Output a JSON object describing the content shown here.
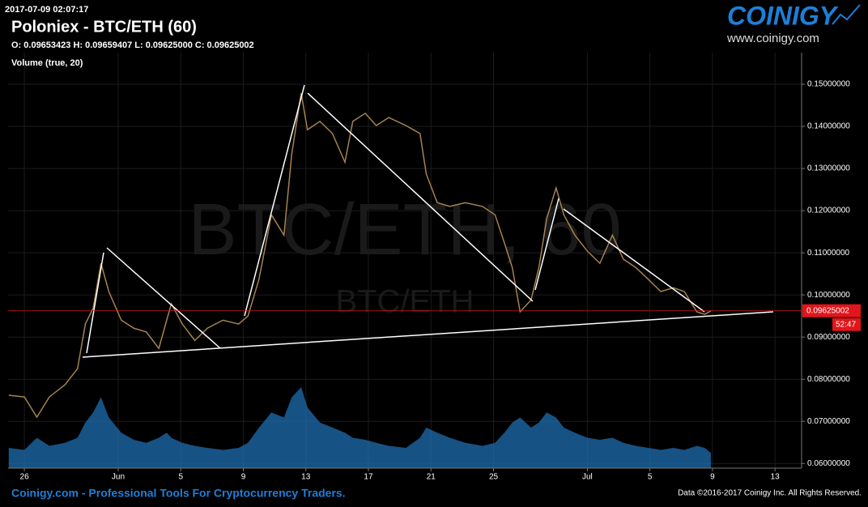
{
  "header": {
    "timestamp": "2017-07-09 02:07:17",
    "title": "Poloniex - BTC/ETH (60)",
    "ohlc": "O: 0.09653423 H: 0.09659407 L: 0.09625000 C: 0.09625002",
    "volume_label": "Volume (true, 20)"
  },
  "logo": {
    "name": "COINIGY",
    "url": "www.coinigy.com"
  },
  "watermark": {
    "large": "BTC/ETH, 60",
    "small": "BTC/ETH"
  },
  "footer": {
    "left": "Coinigy.com - Professional Tools For Cryptocurrency Traders.",
    "right": "Data ©2016-2017 Coinigy Inc. All Rights Reserved."
  },
  "chart_data": {
    "type": "line",
    "x": [
      -1.0,
      0,
      0.8,
      1.6,
      2.6,
      3.4,
      3.9,
      4.4,
      4.9,
      5.4,
      6.2,
      7.0,
      7.8,
      8.6,
      9.1,
      9.4,
      10.1,
      10.9,
      11.7,
      12.7,
      13.7,
      14.3,
      15.0,
      15.8,
      16.6,
      17.1,
      17.7,
      18.1,
      18.9,
      19.7,
      20.5,
      21.0,
      21.8,
      22.5,
      23.3,
      24.4,
      25.3,
      25.7,
      26.4,
      27.2,
      28.2,
      29.3,
      30.1,
      30.7,
      31.2,
      31.7,
      32.4,
      32.9,
      33.4,
      34.0,
      34.5,
      35.2,
      36.0,
      36.8,
      37.6,
      38.3,
      39.1,
      39.9,
      40.7,
      41.5,
      42.2,
      43.0,
      43.5,
      43.9
    ],
    "values": [
      0.0762,
      0.0758,
      0.071,
      0.0758,
      0.0787,
      0.0825,
      0.0931,
      0.0969,
      0.1075,
      0.1008,
      0.094,
      0.0921,
      0.0912,
      0.0873,
      0.094,
      0.0979,
      0.0931,
      0.0892,
      0.0921,
      0.094,
      0.0931,
      0.095,
      0.1037,
      0.119,
      0.1142,
      0.1335,
      0.1479,
      0.1392,
      0.1412,
      0.1383,
      0.1315,
      0.1412,
      0.1431,
      0.1402,
      0.1421,
      0.1402,
      0.1383,
      0.1287,
      0.1219,
      0.121,
      0.1219,
      0.121,
      0.119,
      0.1123,
      0.1065,
      0.096,
      0.0988,
      0.1065,
      0.1181,
      0.1254,
      0.119,
      0.1142,
      0.1104,
      0.1075,
      0.1142,
      0.1085,
      0.1065,
      0.1037,
      0.1008,
      0.1017,
      0.1008,
      0.096,
      0.0954,
      0.0962
    ],
    "color": "#a5824f",
    "volume": [
      20,
      18,
      30,
      22,
      25,
      30,
      45,
      55,
      70,
      50,
      35,
      28,
      25,
      30,
      35,
      30,
      25,
      22,
      20,
      18,
      20,
      25,
      40,
      55,
      50,
      70,
      80,
      60,
      45,
      40,
      35,
      30,
      28,
      25,
      22,
      20,
      30,
      40,
      35,
      30,
      25,
      22,
      25,
      35,
      45,
      50,
      40,
      45,
      55,
      50,
      40,
      35,
      30,
      28,
      30,
      25,
      22,
      20,
      18,
      20,
      18,
      22,
      20,
      15
    ],
    "volume_color": "#1f6db0",
    "last_price": 0.09625002,
    "countdown": "52:47",
    "last_price_color": "#e0161b",
    "xlim": [
      -1.04,
      49.7
    ],
    "xticks": [
      {
        "value": 0,
        "label": "26"
      },
      {
        "value": 6,
        "label": "Jun"
      },
      {
        "value": 10,
        "label": "5"
      },
      {
        "value": 14,
        "label": "9"
      },
      {
        "value": 18,
        "label": "13"
      },
      {
        "value": 22,
        "label": "17"
      },
      {
        "value": 26,
        "label": "21"
      },
      {
        "value": 30,
        "label": "25"
      },
      {
        "value": 36,
        "label": "Jul"
      },
      {
        "value": 40,
        "label": "5"
      },
      {
        "value": 44,
        "label": "9"
      },
      {
        "value": 48,
        "label": "13"
      }
    ],
    "ylim": [
      0.0589,
      0.1575
    ],
    "yticks": [
      {
        "value": 0.06,
        "label": "0.06000000"
      },
      {
        "value": 0.07,
        "label": "0.07000000"
      },
      {
        "value": 0.08,
        "label": "0.08000000"
      },
      {
        "value": 0.09,
        "label": "0.09000000"
      },
      {
        "value": 0.1,
        "label": "0.10000000"
      },
      {
        "value": 0.11,
        "label": "0.11000000"
      },
      {
        "value": 0.12,
        "label": "0.12000000"
      },
      {
        "value": 0.13,
        "label": "0.13000000"
      },
      {
        "value": 0.14,
        "label": "0.14000000"
      },
      {
        "value": 0.15,
        "label": "0.15000000"
      }
    ],
    "grid": true
  }
}
